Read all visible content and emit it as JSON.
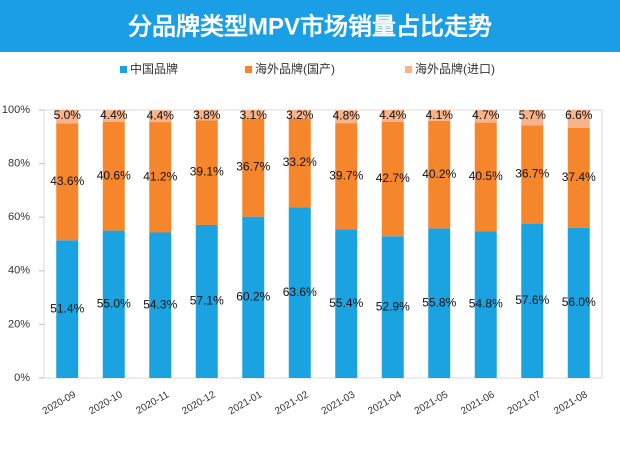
{
  "chart_data": {
    "type": "stacked_bar",
    "title": "分品牌类型MPV市场销量占比走势",
    "categories": [
      "2020-09",
      "2020-10",
      "2020-11",
      "2020-12",
      "2021-01",
      "2021-02",
      "2021-03",
      "2021-04",
      "2021-05",
      "2021-06",
      "2021-07",
      "2021-08"
    ],
    "series": [
      {
        "name": "中国品牌",
        "color": "#1aa3e0",
        "values": [
          51.4,
          55.0,
          54.3,
          57.1,
          60.2,
          63.6,
          55.4,
          52.9,
          55.8,
          54.8,
          57.6,
          56.0
        ],
        "value_labels": [
          "51.4%",
          "55.0%",
          "54.3%",
          "57.1%",
          "60.2%",
          "63.6%",
          "55.4%",
          "52.9%",
          "55.8%",
          "54.8%",
          "57.6%",
          "56.0%"
        ]
      },
      {
        "name": "海外品牌(国产)",
        "color": "#f5862b",
        "values": [
          43.6,
          40.6,
          41.2,
          39.1,
          36.7,
          33.2,
          39.7,
          42.7,
          40.2,
          40.5,
          36.7,
          37.4
        ],
        "value_labels": [
          "43.6%",
          "40.6%",
          "41.2%",
          "39.1%",
          "36.7%",
          "33.2%",
          "39.7%",
          "42.7%",
          "40.2%",
          "40.5%",
          "36.7%",
          "37.4%"
        ]
      },
      {
        "name": "海外品牌(进口)",
        "color": "#f7b38c",
        "values": [
          5.0,
          4.4,
          4.4,
          3.8,
          3.1,
          3.2,
          4.8,
          4.4,
          4.1,
          4.7,
          5.7,
          6.6
        ],
        "value_labels": [
          "5.0%",
          "4.4%",
          "4.4%",
          "3.8%",
          "3.1%",
          "3.2%",
          "4.8%",
          "4.4%",
          "4.1%",
          "4.7%",
          "5.7%",
          "6.6%"
        ]
      }
    ],
    "ylim": [
      0,
      100
    ],
    "yticks": [
      {
        "value": 0,
        "label": "0%"
      },
      {
        "value": 20,
        "label": "20%"
      },
      {
        "value": 40,
        "label": "40%"
      },
      {
        "value": 60,
        "label": "60%"
      },
      {
        "value": 80,
        "label": "80%"
      },
      {
        "value": 100,
        "label": "100%"
      }
    ]
  }
}
